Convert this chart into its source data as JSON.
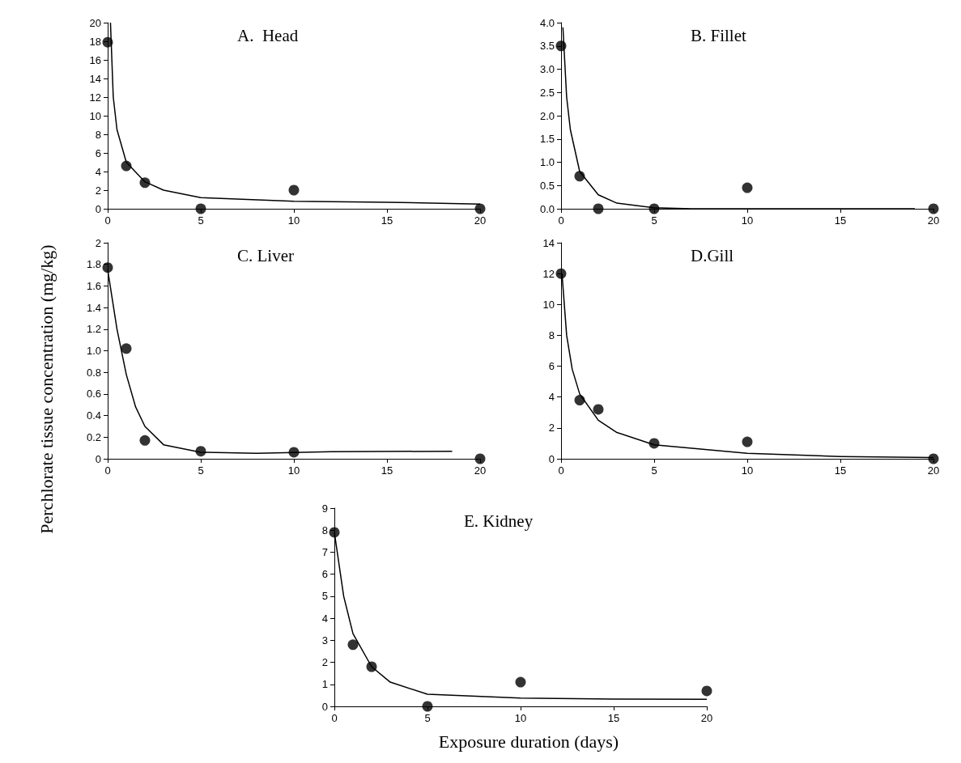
{
  "chart_data": [
    {
      "type": "scatter",
      "title": "A.  Head",
      "ylabel": "Perchlorate tissue concentration (mg/kg)",
      "xlim": [
        0,
        20
      ],
      "xticks": [
        0,
        5,
        10,
        15,
        20
      ],
      "ylim": [
        0,
        20
      ],
      "yticks": [
        0,
        2,
        4,
        6,
        8,
        10,
        12,
        14,
        16,
        18,
        20
      ],
      "grid": false,
      "marker": "circle",
      "series": [
        {
          "color": "#000000",
          "x": [
            0,
            1,
            2,
            5,
            10,
            20
          ],
          "values": [
            17.9,
            4.6,
            2.8,
            0,
            2.0,
            0
          ]
        },
        {
          "type": "line",
          "color": "#000000",
          "marker": "none",
          "x": [
            0.15,
            0.3,
            0.5,
            1,
            2,
            3,
            5,
            10,
            15,
            20
          ],
          "values": [
            20,
            12,
            8.5,
            5,
            2.9,
            2.0,
            1.2,
            0.8,
            0.7,
            0.5
          ]
        }
      ]
    },
    {
      "type": "scatter",
      "title": "B. Fillet",
      "xlim": [
        0,
        20
      ],
      "xticks": [
        0,
        5,
        10,
        15,
        20
      ],
      "ylim": [
        0,
        4
      ],
      "yticks": [
        {
          "value": 0,
          "label": "0.0"
        },
        0.5,
        {
          "value": 1,
          "label": "1.0"
        },
        1.5,
        {
          "value": 2,
          "label": "2.0"
        },
        2.5,
        {
          "value": 3,
          "label": "3.0"
        },
        3.5,
        {
          "value": 4,
          "label": "4.0"
        }
      ],
      "grid": false,
      "marker": "circle",
      "series": [
        {
          "color": "#000000",
          "x": [
            0,
            1,
            2,
            5,
            10,
            20
          ],
          "values": [
            3.5,
            0.7,
            0,
            0,
            0.45,
            0
          ]
        },
        {
          "type": "line",
          "color": "#000000",
          "marker": "none",
          "x": [
            0.1,
            0.3,
            0.5,
            1,
            2,
            3,
            5,
            7,
            19
          ],
          "values": [
            3.9,
            2.4,
            1.7,
            0.8,
            0.3,
            0.12,
            0.02,
            0,
            0
          ]
        }
      ]
    },
    {
      "type": "scatter",
      "title": "C. Liver",
      "xlim": [
        0,
        20
      ],
      "xticks": [
        0,
        5,
        10,
        15,
        20
      ],
      "ylim": [
        0,
        2
      ],
      "yticks": [
        0,
        0.2,
        0.4,
        0.6,
        0.8,
        {
          "value": 1,
          "label": "1.0"
        },
        1.2,
        1.4,
        1.6,
        1.8,
        2
      ],
      "grid": false,
      "marker": "circle",
      "series": [
        {
          "color": "#000000",
          "x": [
            0,
            1,
            2,
            5,
            10,
            20
          ],
          "values": [
            1.77,
            1.02,
            0.17,
            0.07,
            0.06,
            0
          ]
        },
        {
          "type": "line",
          "color": "#000000",
          "marker": "none",
          "x": [
            0,
            0.5,
            1,
            1.5,
            2,
            3,
            5,
            8,
            12,
            18.5
          ],
          "values": [
            1.75,
            1.2,
            0.78,
            0.48,
            0.3,
            0.13,
            0.06,
            0.05,
            0.065,
            0.07
          ]
        }
      ]
    },
    {
      "type": "scatter",
      "title": "D.Gill",
      "xlim": [
        0,
        20
      ],
      "xticks": [
        0,
        5,
        10,
        15,
        20
      ],
      "ylim": [
        0,
        14
      ],
      "yticks": [
        0,
        2,
        4,
        6,
        8,
        10,
        12,
        14
      ],
      "grid": false,
      "marker": "circle",
      "series": [
        {
          "color": "#000000",
          "x": [
            0,
            1,
            2,
            5,
            10,
            20
          ],
          "values": [
            12,
            3.8,
            3.2,
            1.0,
            1.1,
            0
          ]
        },
        {
          "type": "line",
          "color": "#000000",
          "marker": "none",
          "x": [
            0.05,
            0.3,
            0.6,
            1,
            2,
            3,
            5,
            10,
            15,
            20
          ],
          "values": [
            12,
            8,
            5.8,
            4.2,
            2.5,
            1.7,
            0.9,
            0.35,
            0.15,
            0.08
          ]
        }
      ]
    },
    {
      "type": "scatter",
      "title": "E. Kidney",
      "xlabel": "Exposure duration (days)",
      "xlim": [
        0,
        20
      ],
      "xticks": [
        0,
        5,
        10,
        15,
        20
      ],
      "ylim": [
        0,
        9
      ],
      "yticks": [
        0,
        1,
        2,
        3,
        4,
        5,
        6,
        7,
        8,
        9
      ],
      "grid": false,
      "marker": "circle",
      "series": [
        {
          "color": "#000000",
          "x": [
            0,
            1,
            2,
            5,
            10,
            20
          ],
          "values": [
            7.9,
            2.8,
            1.8,
            0,
            1.1,
            0.7
          ]
        },
        {
          "type": "line",
          "color": "#000000",
          "marker": "none",
          "x": [
            0,
            0.5,
            1,
            2,
            3,
            5,
            10,
            15,
            20
          ],
          "values": [
            7.9,
            5,
            3.3,
            1.8,
            1.1,
            0.55,
            0.38,
            0.33,
            0.32
          ]
        }
      ]
    }
  ]
}
